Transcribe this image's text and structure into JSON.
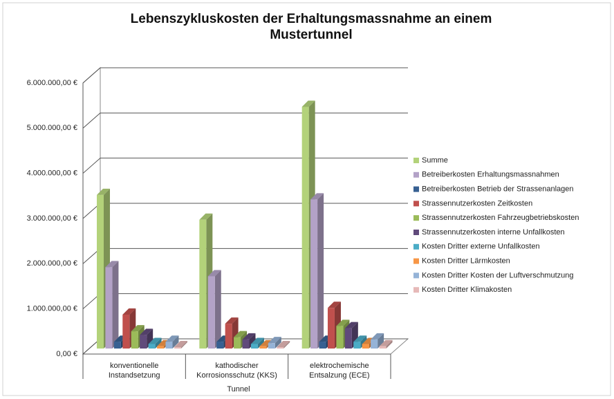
{
  "chart_data": {
    "type": "bar3d",
    "title": "Lebenszykluskosten der Erhaltungsmassnahme an einem Mustertunnel",
    "x_label": "Tunnel",
    "categories": [
      "konventionelle Instandsetzung",
      "kathodischer Korrosionsschutz (KKS)",
      "elektrochemische Entsalzung (ECE)"
    ],
    "ylim": [
      0,
      6000000
    ],
    "yticks": [
      {
        "value": 0,
        "label": "0,00 €"
      },
      {
        "value": 1000000,
        "label": "1.000.000,00 €"
      },
      {
        "value": 2000000,
        "label": "2.000.000,00 €"
      },
      {
        "value": 3000000,
        "label": "3.000.000,00 €"
      },
      {
        "value": 4000000,
        "label": "4.000.000,00 €"
      },
      {
        "value": 5000000,
        "label": "5.000.000,00 €"
      },
      {
        "value": 6000000,
        "label": "6.000.000,00 €"
      }
    ],
    "grid": true,
    "legend": "right",
    "series": [
      {
        "name": "Summe",
        "color": "#b3d27a",
        "values": [
          3400000,
          2850000,
          5350000
        ]
      },
      {
        "name": "Betreiberkosten Erhaltungsmassnahmen",
        "color": "#b3a2c7",
        "values": [
          1800000,
          1600000,
          3300000
        ]
      },
      {
        "name": "Betreiberkosten Betrieb der Strassenanlagen",
        "color": "#376092",
        "values": [
          150000,
          150000,
          150000
        ]
      },
      {
        "name": "Strassennutzerkosten Zeitkosten",
        "color": "#c0504d",
        "values": [
          750000,
          550000,
          900000
        ]
      },
      {
        "name": "Strassennutzerkosten Fahrzeugbetriebskosten",
        "color": "#9bbb59",
        "values": [
          380000,
          250000,
          500000
        ]
      },
      {
        "name": "Strassennutzerkosten interne Unfallkosten",
        "color": "#604a7b",
        "values": [
          300000,
          200000,
          450000
        ]
      },
      {
        "name": "Kosten Dritter externe Unfallkosten",
        "color": "#4bacc6",
        "values": [
          100000,
          100000,
          150000
        ]
      },
      {
        "name": "Kosten Dritter Lärmkosten",
        "color": "#f79646",
        "values": [
          50000,
          50000,
          100000
        ]
      },
      {
        "name": "Kosten Dritter Kosten der Luftverschmutzung",
        "color": "#95b3d7",
        "values": [
          150000,
          120000,
          200000
        ]
      },
      {
        "name": "Kosten Dritter Klimakosten",
        "color": "#e6b9b8",
        "values": [
          30000,
          30000,
          50000
        ]
      }
    ]
  }
}
